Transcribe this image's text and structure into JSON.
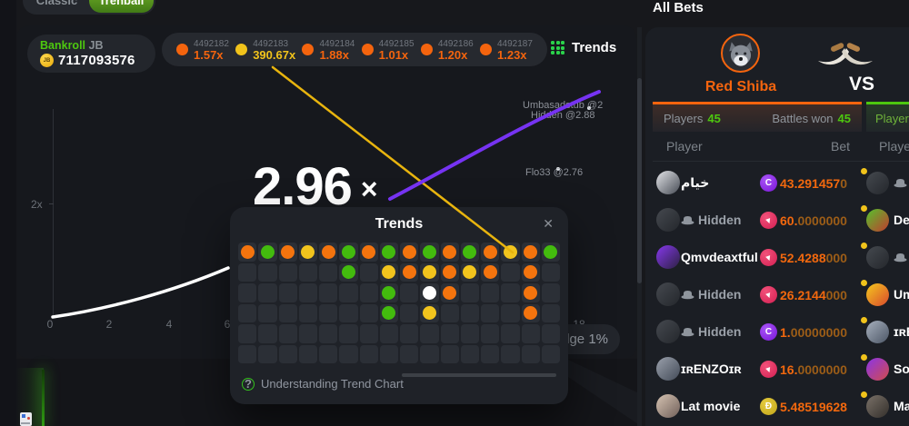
{
  "palette": {
    "orange": "#f4640e",
    "yellow": "#f1c31b",
    "green": "#4dc70f",
    "white": "#ffffff",
    "purple": "#7633f2",
    "dim_orange": "#9c5d17",
    "gray": "#9aa0a8"
  },
  "coins": {
    "purple_c": {
      "c1": "#a855f7",
      "c2": "#7a15d8",
      "glyph": "C"
    },
    "trx": {
      "c1": "#f2517a",
      "c2": "#d31f52",
      "glyph": "▼"
    },
    "doge": {
      "c1": "#e6cc3e",
      "c2": "#c0a51a",
      "glyph": "Ð"
    }
  },
  "mode_tabs": {
    "classic": "Classic",
    "trenball": "Trenball"
  },
  "bankroll": {
    "label": "Bankroll",
    "tag": "JB",
    "coin_text": "JB",
    "value": "7117093576"
  },
  "history": [
    {
      "id": "4492182",
      "mult": "1.57x",
      "color": "orange"
    },
    {
      "id": "4492183",
      "mult": "390.67x",
      "color": "yellow"
    },
    {
      "id": "4492184",
      "mult": "1.88x",
      "color": "orange"
    },
    {
      "id": "4492185",
      "mult": "1.01x",
      "color": "orange"
    },
    {
      "id": "4492186",
      "mult": "1.20x",
      "color": "orange"
    },
    {
      "id": "4492187",
      "mult": "1.23x",
      "color": "orange"
    }
  ],
  "trends_button": {
    "label": "Trends"
  },
  "chart": {
    "big_multiplier": "2.96",
    "multiplier_sign": "×",
    "y_label": "2x",
    "x_ticks": [
      "0",
      "2",
      "4",
      "6",
      "18"
    ],
    "point_labels": [
      {
        "text": "Umbasadstub @2"
      },
      {
        "text": "Hidden @2.88"
      },
      {
        "text": "Flo33 @2.76"
      }
    ],
    "house_edge": "dge 1%"
  },
  "modal": {
    "title": "Trends",
    "close": "✕",
    "footer": "Understanding Trend Chart",
    "dot_colors": {
      "o": "#f4740e",
      "g": "#43bb0e",
      "y": "#f2c41d",
      "w": "#ffffff"
    },
    "grid": [
      "ogoyogogogogoyog",
      ".....g.yoyoyo.o.",
      ".......g.wo...o.",
      ".......g.y....o.",
      "................",
      "................"
    ]
  },
  "bets": {
    "title": "All Bets",
    "team1": {
      "name": "Red Shiba"
    },
    "vs": "VS",
    "tab1": {
      "players_label": "Players",
      "players": "45",
      "battles_label": "Battles won",
      "battles": "45"
    },
    "tab2": {
      "players_label": "Players",
      "players": "4"
    },
    "headers": {
      "player": "Player",
      "bet": "Bet",
      "player2": "Player"
    },
    "rows": [
      {
        "name": "خيام",
        "hidden": false,
        "coin": "purple_c",
        "bet": "43.291457",
        "bet_dim": "0",
        "avatar": {
          "c1": "#e3e4e8",
          "c2": "#474c55"
        },
        "opponent": {
          "name": "H",
          "hidden": true,
          "avatar": {
            "c1": "#45494f",
            "c2": "#24272c"
          }
        }
      },
      {
        "name": "Hidden",
        "hidden": true,
        "coin": "trx",
        "bet": "60.",
        "bet_dim": "0000000",
        "avatar": {
          "c1": "#45494f",
          "c2": "#24272c"
        },
        "opponent": {
          "name": "Dev",
          "hidden": false,
          "avatar": {
            "c1": "#55c22d",
            "c2": "#c23b2e"
          }
        }
      },
      {
        "name": "Qmvdeaxtful",
        "hidden": false,
        "coin": "trx",
        "bet": "52.4288",
        "bet_dim": "000",
        "avatar": {
          "c1": "#8638ec",
          "c2": "#2c2142"
        },
        "opponent": {
          "name": "H",
          "hidden": true,
          "avatar": {
            "c1": "#45494f",
            "c2": "#24272c"
          }
        }
      },
      {
        "name": "Hidden",
        "hidden": true,
        "coin": "trx",
        "bet": "26.2144",
        "bet_dim": "000",
        "avatar": {
          "c1": "#45494f",
          "c2": "#24272c"
        },
        "opponent": {
          "name": "Um",
          "hidden": false,
          "avatar": {
            "c1": "#f5c91e",
            "c2": "#d8492c"
          }
        }
      },
      {
        "name": "Hidden",
        "hidden": true,
        "coin": "purple_c",
        "bet": "1.",
        "bet_dim": "00000000",
        "avatar": {
          "c1": "#45494f",
          "c2": "#24272c"
        },
        "opponent": {
          "name": "ɪʀEN",
          "hidden": false,
          "avatar": {
            "c1": "#a7b0bd",
            "c2": "#4c5666"
          }
        }
      },
      {
        "name": "ɪʀENZOɪʀ",
        "hidden": false,
        "coin": "trx",
        "bet": "16.",
        "bet_dim": "0000000",
        "avatar": {
          "c1": "#9aa0ab",
          "c2": "#434b58"
        },
        "opponent": {
          "name": "Soh",
          "hidden": false,
          "avatar": {
            "c1": "#8b35e8",
            "c2": "#d14b4b"
          }
        }
      },
      {
        "name": "Lat movie",
        "hidden": false,
        "coin": "doge",
        "bet": "5.48519628",
        "bet_dim": "",
        "avatar": {
          "c1": "#d6c3b2",
          "c2": "#70605a"
        },
        "opponent": {
          "name": "Mad",
          "hidden": false,
          "avatar": {
            "c1": "#7a7168",
            "c2": "#332f2b"
          }
        }
      }
    ]
  }
}
